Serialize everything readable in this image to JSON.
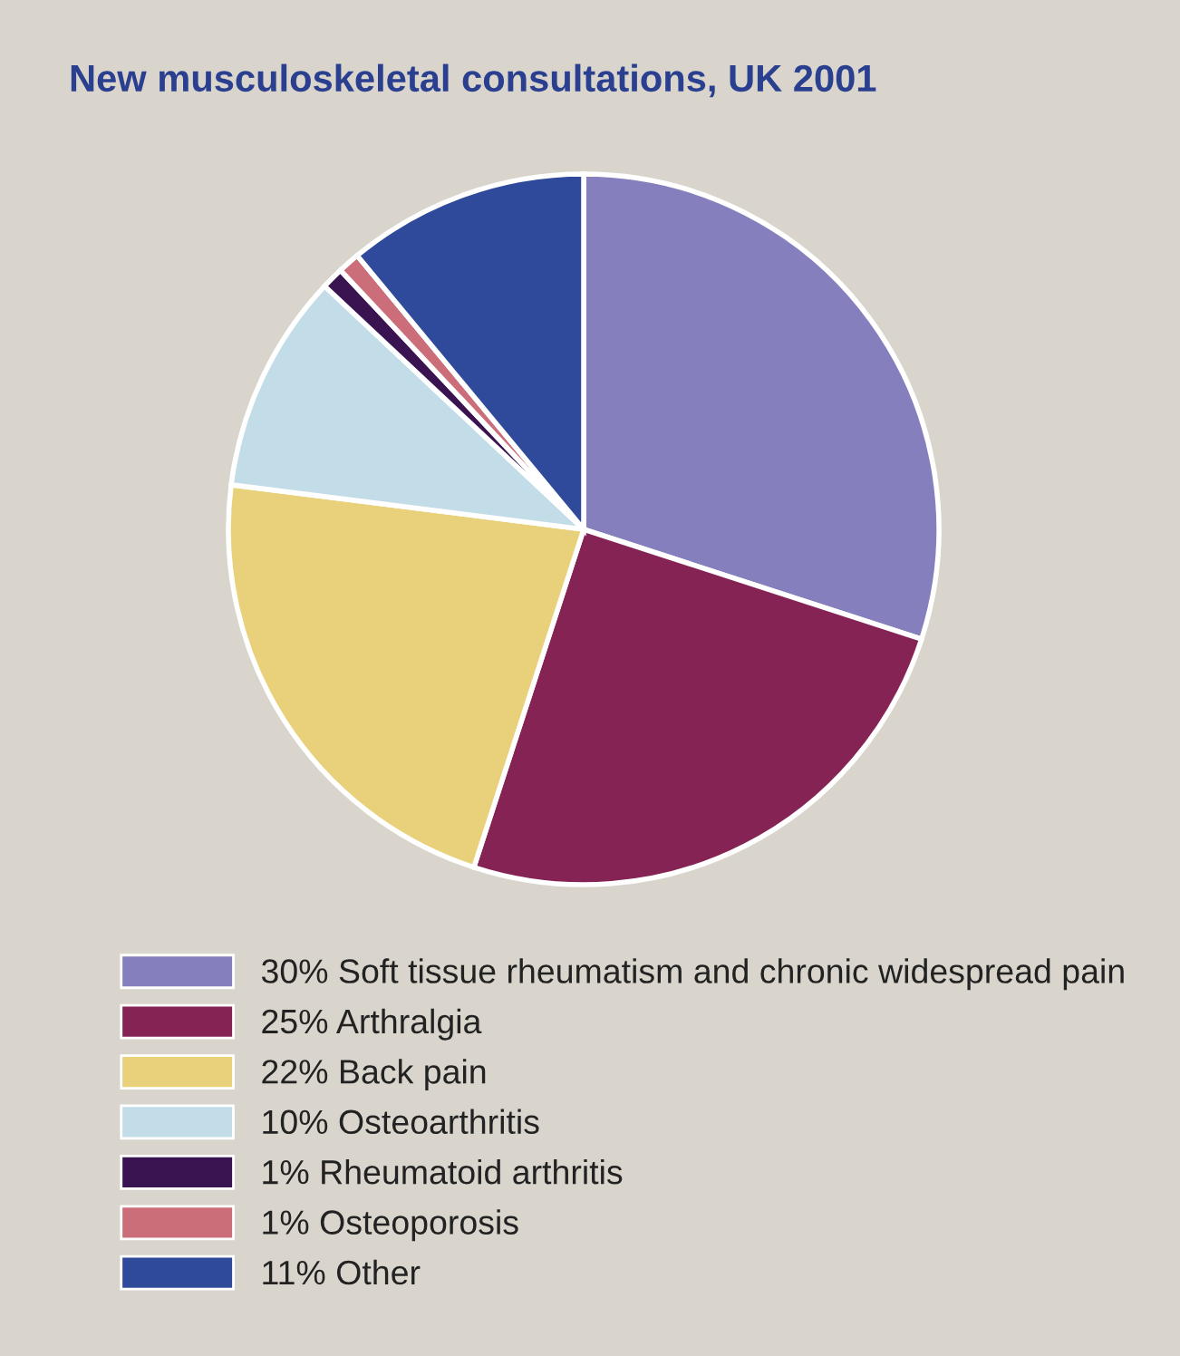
{
  "chart_data": {
    "type": "pie",
    "title": "New musculoskeletal consultations, UK 2001",
    "categories": [
      "Soft tissue rheumatism and chronic widespread pain",
      "Arthralgia",
      "Back pain",
      "Osteoarthritis",
      "Rheumatoid arthritis",
      "Osteoporosis",
      "Other"
    ],
    "values": [
      30,
      25,
      22,
      10,
      1,
      1,
      11
    ],
    "colors": [
      "#8580bd",
      "#862355",
      "#e8d17a",
      "#c2dce8",
      "#3a1450",
      "#cc6e7a",
      "#2f4a9a"
    ],
    "value_labels": [
      "30%",
      "25%",
      "22%",
      "10%",
      "1%",
      "1%",
      "11%"
    ],
    "legend": "bottom"
  }
}
